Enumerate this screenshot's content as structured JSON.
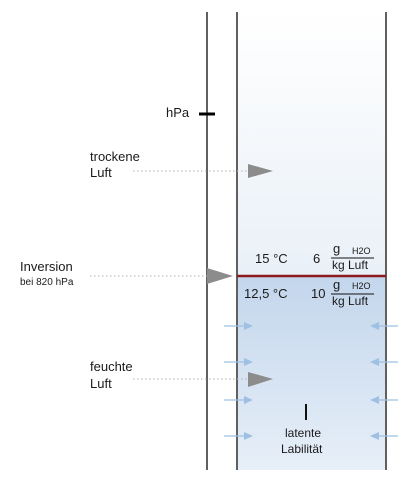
{
  "axis": {
    "pressure_unit": "hPa"
  },
  "layers": {
    "upper": {
      "label_line1": "trockene",
      "label_line2": "Luft"
    },
    "lower": {
      "label_line1": "feuchte",
      "label_line2": "Luft"
    }
  },
  "inversion": {
    "label": "Inversion",
    "sublabel": "bei 820 hPa"
  },
  "above_inversion": {
    "temperature": "15 °C",
    "mixing_ratio": "6",
    "unit_top": "g",
    "unit_sub": "H2O",
    "unit_bottom": "kg Luft"
  },
  "below_inversion": {
    "temperature": "12,5 °C",
    "mixing_ratio": "10",
    "unit_top": "g",
    "unit_sub": "H2O",
    "unit_bottom": "kg Luft"
  },
  "instability": {
    "line1": "latente",
    "line2": "Labilität"
  },
  "colors": {
    "upper_air": "#eef3f8",
    "lower_air": "#c9dbee",
    "inversion_line": "#8b1a1a",
    "arrow_gray": "#8c8c8c",
    "inflow_arrow": "#9ec0e2",
    "column_border": "#555555"
  },
  "icons": {
    "layer_arrow": "triangle-right-icon",
    "inflow_arrow": "inflow-arrow-icon",
    "instability_mark": "vertical-bar-icon"
  }
}
